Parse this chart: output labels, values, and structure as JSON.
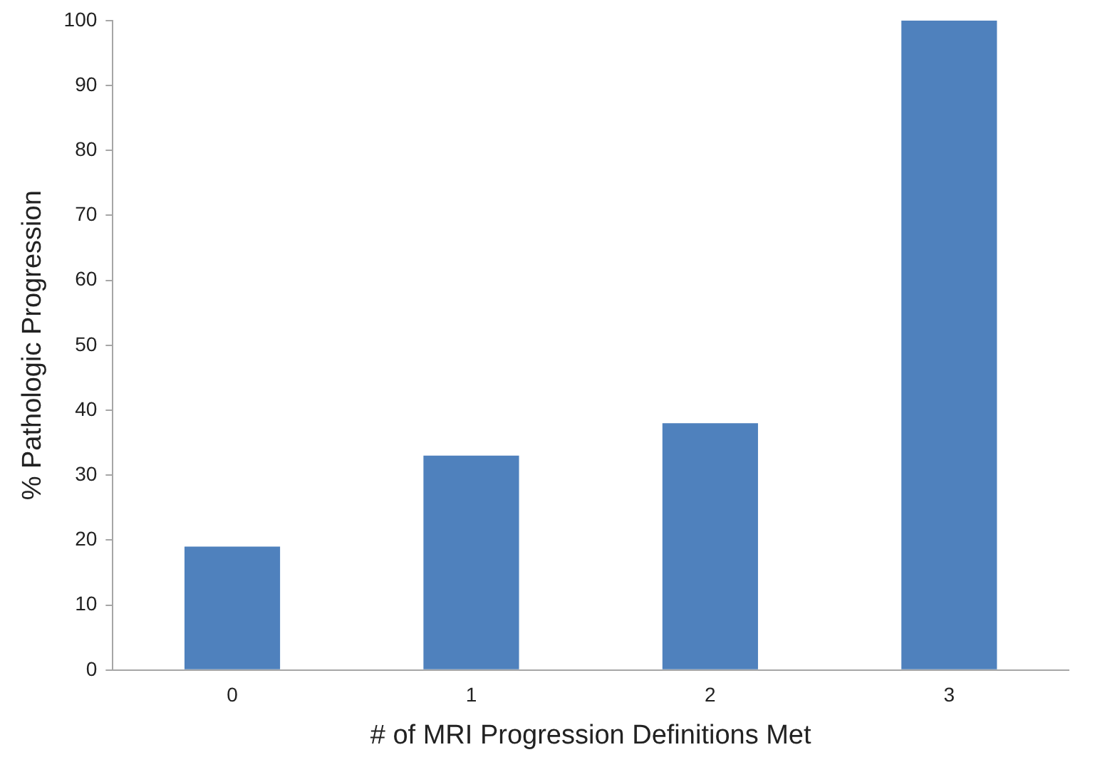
{
  "chart_data": {
    "type": "bar",
    "xlabel": "# of MRI Progression Definitions Met",
    "ylabel": "% Pathologic Progression",
    "categories": [
      "0",
      "1",
      "2",
      "3"
    ],
    "values": [
      19,
      33,
      38,
      100
    ],
    "color": "#4f81bd",
    "ylim": [
      0,
      100
    ],
    "yticks": [
      0,
      10,
      20,
      30,
      40,
      50,
      60,
      70,
      80,
      90,
      100
    ],
    "grid": false,
    "legend": false
  }
}
